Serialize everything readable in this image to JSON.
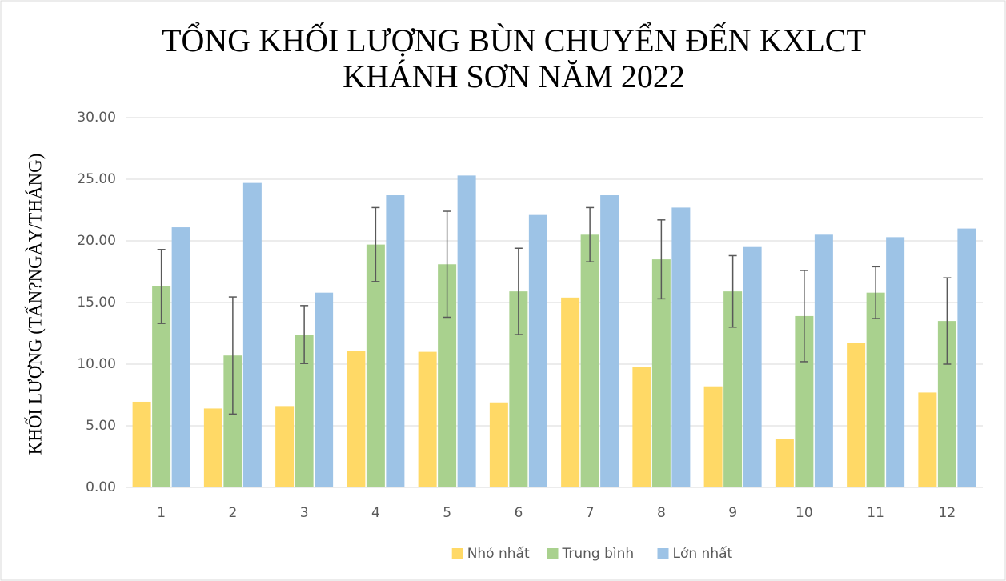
{
  "chart_data": {
    "type": "bar",
    "title": [
      "TỔNG KHỐI LƯỢNG BÙN CHUYỂN ĐẾN KXLCT",
      "KHÁNH SƠN NĂM 2022"
    ],
    "ylabel": "KHỐI LƯỢNG (TẤN?NGÀY/THÁNG)",
    "categories": [
      "1",
      "2",
      "3",
      "4",
      "5",
      "6",
      "7",
      "8",
      "9",
      "10",
      "11",
      "12"
    ],
    "series": [
      {
        "name": "Nhỏ nhất",
        "color": "#ffd966",
        "values": [
          6.95,
          6.4,
          6.6,
          11.1,
          11.0,
          6.9,
          15.4,
          9.8,
          8.2,
          3.9,
          11.7,
          7.7
        ]
      },
      {
        "name": "Trung bình",
        "color": "#a9d18e",
        "values": [
          16.3,
          10.7,
          12.4,
          19.7,
          18.1,
          15.9,
          20.5,
          18.5,
          15.9,
          13.9,
          15.8,
          13.5
        ],
        "errors": [
          3.0,
          4.75,
          2.35,
          3.0,
          4.3,
          3.5,
          2.2,
          3.2,
          2.9,
          3.7,
          2.1,
          3.5
        ],
        "error_color": "#595959"
      },
      {
        "name": "Lớn nhất",
        "color": "#9dc3e6",
        "values": [
          21.1,
          24.7,
          15.8,
          23.7,
          25.3,
          22.1,
          23.7,
          22.7,
          19.5,
          20.5,
          20.3,
          21.0
        ]
      }
    ],
    "ylim": [
      0,
      30
    ],
    "yticks": [
      {
        "value": 0,
        "label": "0.00"
      },
      {
        "value": 5,
        "label": "5.00"
      },
      {
        "value": 10,
        "label": "10.00"
      },
      {
        "value": 15,
        "label": "15.00"
      },
      {
        "value": 20,
        "label": "20.00"
      },
      {
        "value": 25,
        "label": "25.00"
      },
      {
        "value": 30,
        "label": "30.00"
      }
    ],
    "grid": true,
    "legend": "bottom"
  }
}
